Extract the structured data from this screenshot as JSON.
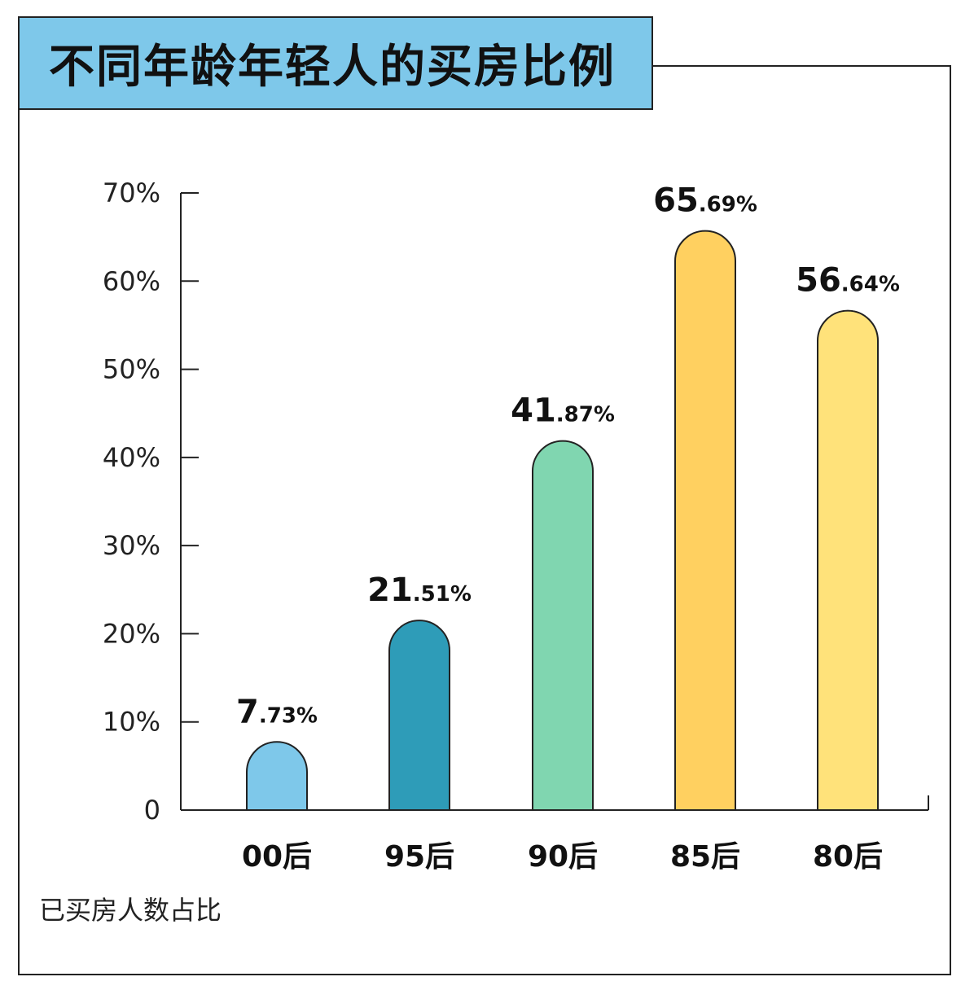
{
  "title": "不同年龄年轻人的买房比例",
  "footnote": "已买房人数占比",
  "chart_data": {
    "type": "bar",
    "title": "不同年龄年轻人的买房比例",
    "categories": [
      "00后",
      "95后",
      "90后",
      "85后",
      "80后"
    ],
    "values": [
      7.73,
      21.51,
      41.87,
      65.69,
      56.64
    ],
    "value_labels": [
      {
        "main": "7",
        "decimal": ".73%"
      },
      {
        "main": "21",
        "decimal": ".51%"
      },
      {
        "main": "41",
        "decimal": ".87%"
      },
      {
        "main": "65",
        "decimal": ".69%"
      },
      {
        "main": "56",
        "decimal": ".64%"
      }
    ],
    "colors": [
      "#7ec8ea",
      "#2e9cb8",
      "#80d6b0",
      "#ffd060",
      "#ffe27a"
    ],
    "y_ticks": [
      0,
      10,
      20,
      30,
      40,
      50,
      60,
      70
    ],
    "y_tick_labels": [
      "0",
      "10%",
      "20%",
      "30%",
      "40%",
      "50%",
      "60%",
      "70%"
    ],
    "ylim": [
      0,
      70
    ],
    "ylabel": "已买房人数占比",
    "grid": false,
    "legend": "none"
  }
}
